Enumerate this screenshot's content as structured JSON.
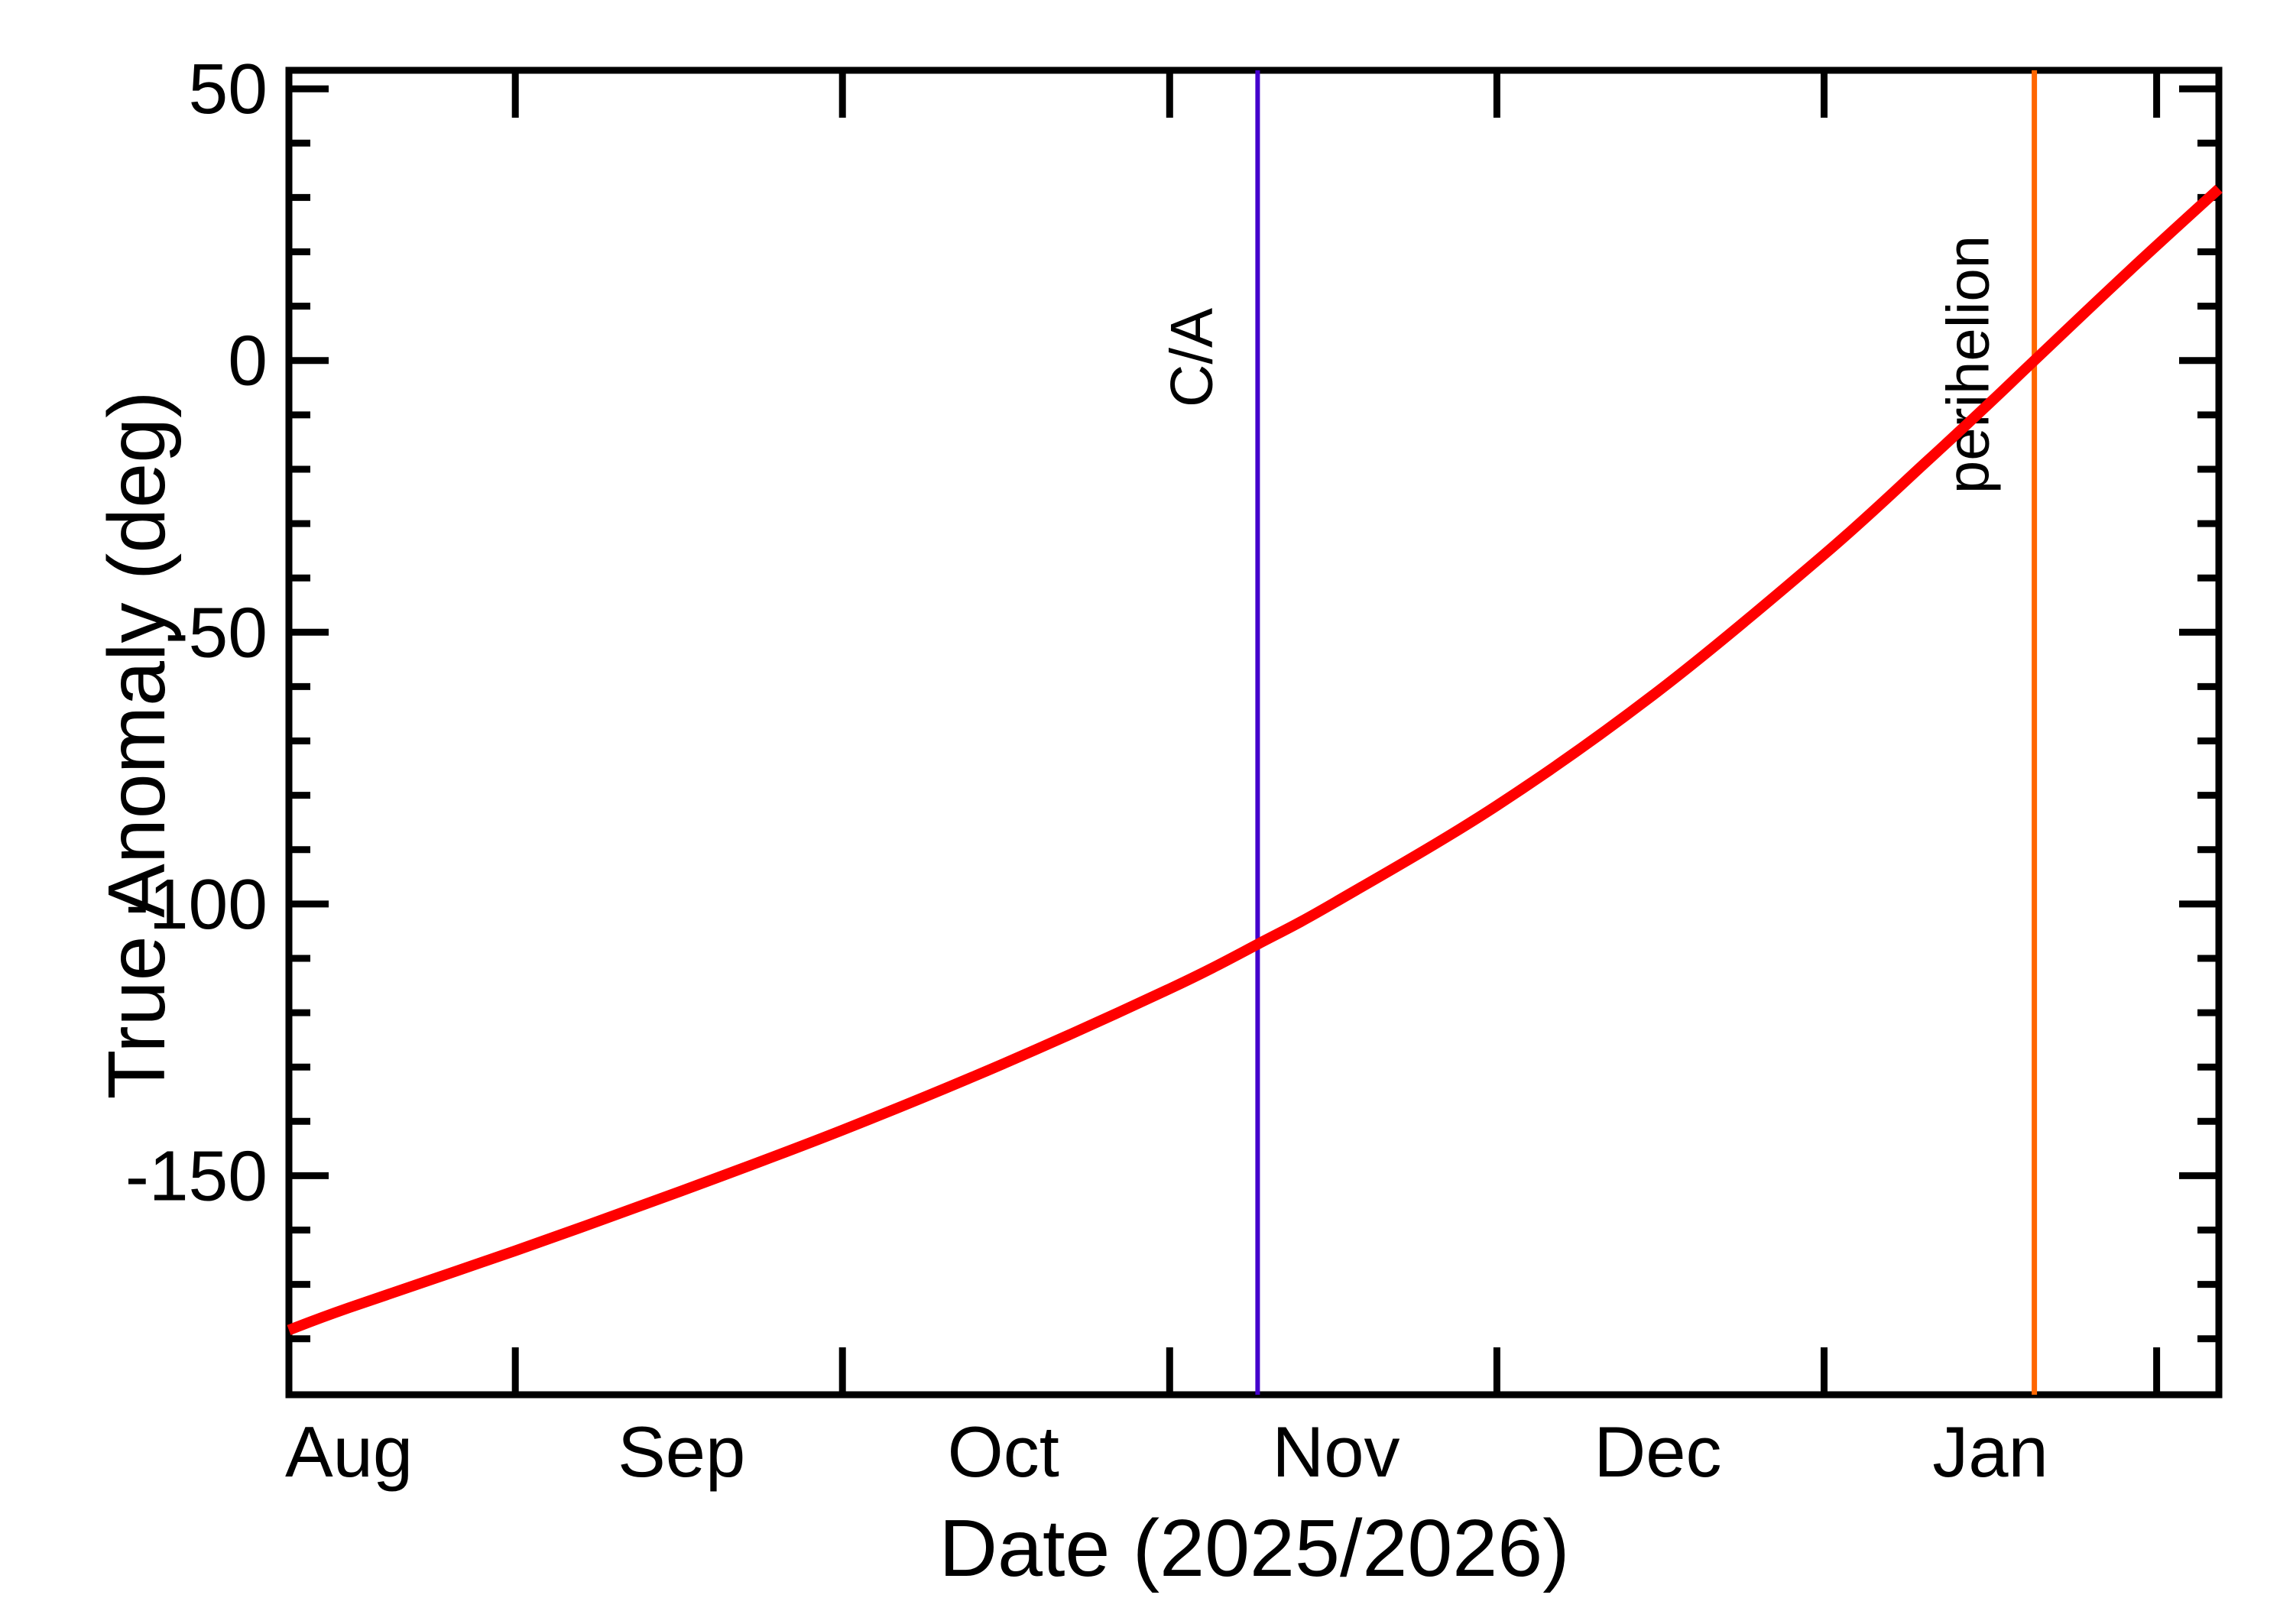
{
  "chart_data": {
    "type": "line",
    "title": "",
    "xlabel": "Date (2025/2026)",
    "ylabel": "True Anomaly (deg)",
    "x_unit": "days since 2025-Aug-01",
    "xlim_days": [
      -5.6,
      174.3
    ],
    "ylim": [
      -190.3,
      53.4
    ],
    "grid": false,
    "legend_position": "none",
    "y_major_ticks": [
      {
        "value": 50,
        "label": "50"
      },
      {
        "value": 0,
        "label": "0"
      },
      {
        "value": -50,
        "label": "-50"
      },
      {
        "value": -100,
        "label": "-100"
      },
      {
        "value": -150,
        "label": "-150"
      }
    ],
    "y_minor_ticks": [
      40,
      30,
      20,
      10,
      -10,
      -20,
      -30,
      -40,
      -60,
      -70,
      -80,
      -90,
      -110,
      -120,
      -130,
      -140,
      -160,
      -170,
      -180
    ],
    "x_month_labels": [
      {
        "label": "Aug",
        "day": 0
      },
      {
        "label": "Sep",
        "day": 31
      },
      {
        "label": "Oct",
        "day": 61
      },
      {
        "label": "Nov",
        "day": 92
      },
      {
        "label": "Dec",
        "day": 122
      },
      {
        "label": "Jan",
        "day": 153
      }
    ],
    "x_mid_month_tick_days": [
      15.5,
      46,
      76.5,
      107,
      137.5,
      168.5
    ],
    "series": [
      {
        "name": "true-anomaly",
        "color": "#ff0000",
        "stroke_width": 14,
        "points_day_deg": [
          [
            -5.6,
            -178.4
          ],
          [
            0,
            -174.3
          ],
          [
            15.5,
            -163.8
          ],
          [
            31,
            -152.8
          ],
          [
            46,
            -141.6
          ],
          [
            61,
            -129.4
          ],
          [
            76.5,
            -115.6
          ],
          [
            85,
            -107.1
          ],
          [
            92,
            -99.6
          ],
          [
            107,
            -81.9
          ],
          [
            122,
            -60.9
          ],
          [
            137.5,
            -35.7
          ],
          [
            147,
            -18.7
          ],
          [
            153,
            -7.7
          ],
          [
            157.1,
            0
          ],
          [
            166,
            16.6
          ],
          [
            174.3,
            31.6
          ]
        ]
      }
    ],
    "event_lines": [
      {
        "name": "closest-approach",
        "label": "C/A",
        "day": 84.7,
        "color": "#4400cc",
        "stroke_width": 6,
        "value_at_line_deg": -107
      },
      {
        "name": "perihelion",
        "label": "perihelion",
        "day": 157.1,
        "color": "#ff6600",
        "stroke_width": 7,
        "value_at_line_deg": 0
      }
    ],
    "frame_color": "#000000"
  }
}
